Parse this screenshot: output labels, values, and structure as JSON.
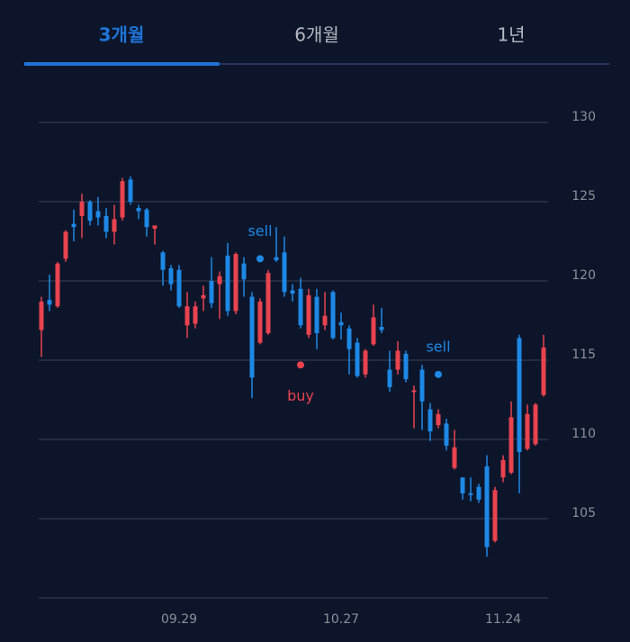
{
  "tabs": [
    "3개월",
    "6개월",
    "1년"
  ],
  "active_tab": 0,
  "chart_data": {
    "type": "candlestick",
    "categories": [
      null,
      null,
      null,
      null,
      null,
      null,
      null,
      null,
      null,
      null,
      null,
      null,
      null,
      null,
      null,
      null,
      null,
      "09.29",
      null,
      null,
      null,
      null,
      null,
      null,
      null,
      null,
      null,
      null,
      null,
      null,
      null,
      null,
      null,
      null,
      null,
      null,
      null,
      "10.27",
      null,
      null,
      null,
      null,
      null,
      null,
      null,
      null,
      null,
      null,
      null,
      null,
      null,
      null,
      null,
      null,
      null,
      null,
      null,
      "11.24",
      null,
      null,
      null,
      null,
      null
    ],
    "open": [
      116.9,
      118.8,
      118.4,
      121.4,
      123.6,
      124.1,
      125.0,
      124.4,
      124.1,
      123.1,
      124.0,
      126.4,
      124.6,
      124.5,
      123.3,
      121.8,
      120.8,
      120.7,
      117.2,
      117.3,
      118.9,
      120.0,
      119.8,
      121.6,
      118.1,
      121.1,
      119.0,
      116.1,
      116.7,
      121.5,
      121.8,
      119.4,
      119.5,
      116.6,
      119.0,
      117.2,
      119.3,
      117.4,
      117.0,
      116.1,
      114.1,
      116.0,
      117.1,
      114.4,
      114.4,
      115.4,
      113.0,
      114.4,
      111.9,
      110.9,
      111.0,
      108.2,
      107.6,
      106.6,
      107.0,
      108.3,
      103.6,
      107.6,
      107.9,
      116.4,
      109.4,
      109.7,
      112.8
    ],
    "high": [
      119.0,
      120.4,
      121.2,
      123.2,
      124.5,
      125.5,
      125.1,
      125.3,
      124.6,
      124.8,
      126.5,
      126.6,
      124.8,
      124.6,
      123.5,
      121.9,
      121.0,
      121.0,
      119.3,
      118.7,
      119.7,
      121.5,
      120.6,
      122.4,
      121.8,
      121.5,
      119.3,
      118.9,
      120.7,
      123.4,
      122.8,
      119.8,
      120.2,
      119.5,
      119.5,
      119.3,
      119.4,
      118.0,
      117.2,
      116.4,
      115.7,
      118.5,
      118.3,
      115.6,
      116.2,
      115.6,
      113.4,
      114.7,
      112.3,
      111.9,
      111.3,
      110.6,
      107.6,
      107.6,
      107.2,
      109.0,
      107.0,
      109.0,
      112.4,
      116.6,
      112.2,
      112.3,
      116.6
    ],
    "low": [
      115.2,
      118.1,
      118.3,
      121.2,
      122.5,
      122.7,
      123.5,
      123.5,
      122.7,
      122.3,
      123.8,
      124.8,
      123.9,
      122.8,
      122.3,
      119.7,
      119.4,
      118.3,
      116.4,
      117.0,
      118.1,
      118.3,
      117.6,
      117.8,
      117.9,
      119.0,
      112.6,
      116.0,
      116.6,
      121.2,
      119.0,
      118.7,
      117.0,
      116.4,
      115.7,
      116.9,
      116.3,
      116.3,
      114.1,
      113.9,
      113.9,
      115.9,
      116.7,
      113.0,
      114.1,
      113.6,
      110.7,
      110.6,
      109.9,
      110.7,
      109.3,
      108.1,
      106.2,
      106.1,
      106.0,
      102.6,
      103.5,
      107.3,
      107.8,
      106.6,
      109.3,
      109.6,
      112.7
    ],
    "close": [
      118.7,
      118.5,
      121.1,
      123.1,
      123.4,
      125.0,
      123.8,
      124.0,
      123.1,
      123.9,
      126.3,
      125.0,
      124.4,
      123.4,
      123.5,
      120.7,
      119.8,
      118.4,
      118.4,
      118.4,
      119.1,
      118.6,
      120.3,
      118.1,
      121.7,
      120.1,
      113.9,
      118.7,
      120.5,
      121.3,
      119.3,
      119.2,
      117.2,
      119.1,
      116.7,
      117.8,
      116.4,
      117.2,
      115.7,
      114.0,
      115.6,
      117.7,
      116.9,
      113.3,
      115.6,
      113.8,
      113.1,
      112.4,
      110.5,
      111.6,
      109.6,
      109.5,
      106.6,
      106.5,
      106.2,
      103.2,
      106.8,
      108.7,
      111.4,
      109.2,
      111.6,
      112.2,
      115.8
    ],
    "up_color": "#e8434f",
    "down_color": "#1e88e5",
    "ylim": [
      100,
      130
    ],
    "yticks": [
      105,
      110,
      115,
      120,
      125,
      130
    ],
    "grid": true,
    "markers": [
      {
        "label": "sell",
        "at": 27,
        "value": 121.4,
        "color": "#1e88e5",
        "label_side": "above"
      },
      {
        "label": "buy",
        "at": 32,
        "value": 114.7,
        "color": "#e8434f",
        "label_side": "below"
      },
      {
        "label": "sell",
        "at": 49,
        "value": 114.1,
        "color": "#1e88e5",
        "label_side": "above"
      }
    ]
  }
}
